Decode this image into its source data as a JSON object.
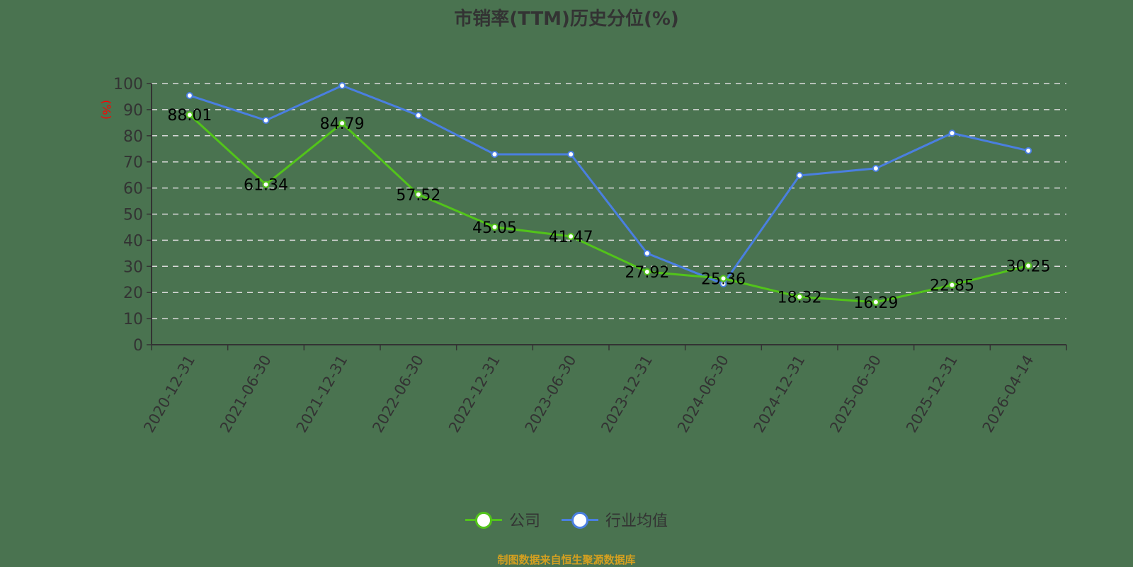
{
  "title": "市销率(TTM)历史分位(%)",
  "y_axis_unit": "(%)",
  "source_note": "制图数据来自恒生聚源数据库",
  "legend": [
    {
      "label": "公司",
      "color": "#52c41a"
    },
    {
      "label": "行业均值",
      "color": "#4a7fe0"
    }
  ],
  "colors": {
    "background": "#4a7350",
    "company": "#52c41a",
    "industry": "#4a7fe0",
    "axis": "#333333",
    "grid": "#d9d9d9",
    "unit_label": "#ff0000",
    "source_note": "#d4a020"
  },
  "chart_data": {
    "type": "line",
    "title": "市销率(TTM)历史分位(%)",
    "xlabel": "",
    "ylabel": "(%)",
    "ylim": [
      0,
      100
    ],
    "yticks": [
      0,
      10,
      20,
      30,
      40,
      50,
      60,
      70,
      80,
      90,
      100
    ],
    "grid": true,
    "legend_position": "bottom",
    "categories": [
      "2020-12-31",
      "2021-06-30",
      "2021-12-31",
      "2022-06-30",
      "2022-12-31",
      "2023-06-30",
      "2023-12-31",
      "2024-06-30",
      "2024-12-31",
      "2025-06-30",
      "2025-12-31",
      "2026-04-14"
    ],
    "series": [
      {
        "name": "公司",
        "values": [
          88.01,
          61.34,
          84.79,
          57.52,
          45.05,
          41.47,
          27.92,
          25.36,
          18.32,
          16.29,
          22.85,
          30.25
        ],
        "labels": [
          "88.01",
          "61.34",
          "84.79",
          "57.52",
          "45.05",
          "41.47",
          "27.92",
          "25.36",
          "18.32",
          "16.29",
          "22.85",
          "30.25"
        ]
      },
      {
        "name": "行业均值",
        "values": [
          95.4,
          85.9,
          99.2,
          87.8,
          72.9,
          72.9,
          35.0,
          23.3,
          64.8,
          67.5,
          81.0,
          74.3
        ]
      }
    ]
  }
}
